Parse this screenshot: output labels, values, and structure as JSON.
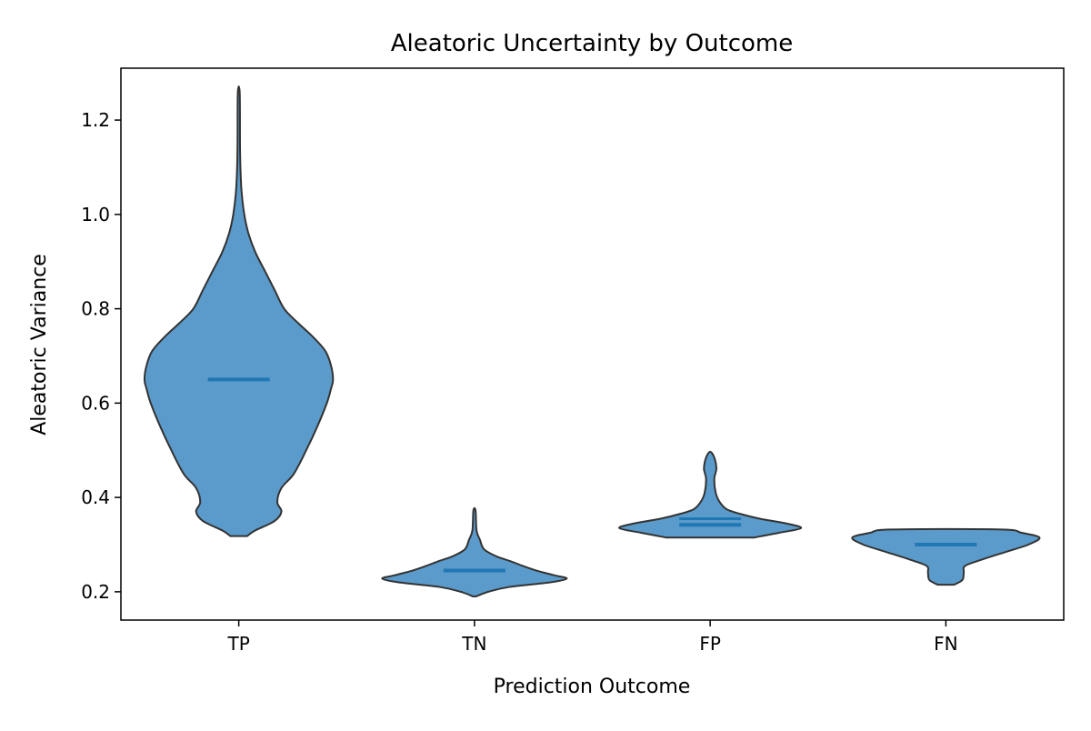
{
  "chart_data": {
    "type": "violin",
    "title": "Aleatoric Uncertainty by Outcome",
    "xlabel": "Prediction Outcome",
    "ylabel": "Aleatoric Variance",
    "ylim": [
      0.14,
      1.31
    ],
    "yticks": [
      0.2,
      0.4,
      0.6,
      0.8,
      1.0,
      1.2
    ],
    "ytick_labels": [
      "0.2",
      "0.4",
      "0.6",
      "0.8",
      "1.0",
      "1.2"
    ],
    "categories": [
      "TP",
      "TN",
      "FP",
      "FN"
    ],
    "colors": {
      "fill": "#5b9bcb",
      "edge": "#333333",
      "median": "#1f77b4"
    },
    "grid": false,
    "legend": "none",
    "violins": [
      {
        "category": "TP",
        "min": 0.318,
        "max": 1.258,
        "median": 0.65,
        "mean": 0.65,
        "profile": [
          [
            0.318,
            0.006
          ],
          [
            0.33,
            0.012
          ],
          [
            0.35,
            0.026
          ],
          [
            0.37,
            0.031
          ],
          [
            0.39,
            0.028
          ],
          [
            0.42,
            0.031
          ],
          [
            0.45,
            0.04
          ],
          [
            0.5,
            0.049
          ],
          [
            0.55,
            0.057
          ],
          [
            0.6,
            0.064
          ],
          [
            0.63,
            0.067
          ],
          [
            0.65,
            0.0685
          ],
          [
            0.68,
            0.067
          ],
          [
            0.71,
            0.063
          ],
          [
            0.74,
            0.054
          ],
          [
            0.77,
            0.043
          ],
          [
            0.8,
            0.033
          ],
          [
            0.84,
            0.026
          ],
          [
            0.88,
            0.019
          ],
          [
            0.92,
            0.012
          ],
          [
            0.96,
            0.007
          ],
          [
            1.0,
            0.004
          ],
          [
            1.05,
            0.002
          ],
          [
            1.1,
            0.0012
          ],
          [
            1.15,
            0.0009
          ],
          [
            1.258,
            0.0007
          ]
        ]
      },
      {
        "category": "TN",
        "min": 0.19,
        "max": 0.372,
        "median": 0.245,
        "mean": 0.245,
        "profile": [
          [
            0.19,
            0.001
          ],
          [
            0.2,
            0.01
          ],
          [
            0.21,
            0.025
          ],
          [
            0.22,
            0.055
          ],
          [
            0.228,
            0.067
          ],
          [
            0.235,
            0.058
          ],
          [
            0.245,
            0.045
          ],
          [
            0.255,
            0.035
          ],
          [
            0.265,
            0.026
          ],
          [
            0.275,
            0.016
          ],
          [
            0.29,
            0.007
          ],
          [
            0.31,
            0.004
          ],
          [
            0.33,
            0.0015
          ],
          [
            0.372,
            0.0008
          ]
        ]
      },
      {
        "category": "FP",
        "min": 0.315,
        "max": 0.495,
        "median": 0.342,
        "mean": 0.355,
        "profile": [
          [
            0.315,
            0.032
          ],
          [
            0.325,
            0.05
          ],
          [
            0.335,
            0.066
          ],
          [
            0.345,
            0.055
          ],
          [
            0.355,
            0.036
          ],
          [
            0.365,
            0.022
          ],
          [
            0.375,
            0.012
          ],
          [
            0.39,
            0.007
          ],
          [
            0.41,
            0.004
          ],
          [
            0.44,
            0.003
          ],
          [
            0.46,
            0.0045
          ],
          [
            0.48,
            0.0035
          ],
          [
            0.495,
            0.001
          ]
        ]
      },
      {
        "category": "FN",
        "min": 0.215,
        "max": 0.332,
        "median": 0.3,
        "mean": 0.3,
        "profile": [
          [
            0.215,
            0.006
          ],
          [
            0.225,
            0.012
          ],
          [
            0.24,
            0.013
          ],
          [
            0.255,
            0.014
          ],
          [
            0.268,
            0.026
          ],
          [
            0.285,
            0.044
          ],
          [
            0.3,
            0.06
          ],
          [
            0.315,
            0.068
          ],
          [
            0.325,
            0.055
          ],
          [
            0.332,
            0.04
          ]
        ]
      }
    ]
  }
}
